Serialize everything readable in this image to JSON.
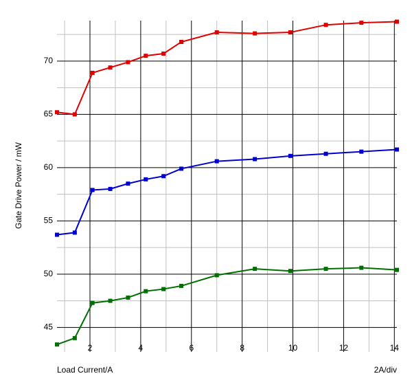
{
  "chart_data": {
    "type": "line",
    "y_label": "Gate Drive Power / mW",
    "x_label": "Load Current/A",
    "x_scale_note": "2A/div",
    "x": [
      0.7,
      1.4,
      2.1,
      2.8,
      3.5,
      4.2,
      4.9,
      5.6,
      7.0,
      8.5,
      9.9,
      11.3,
      12.7,
      14.1
    ],
    "series": [
      {
        "color": "#e00000",
        "values": [
          65.2,
          65.0,
          68.9,
          69.4,
          69.9,
          70.5,
          70.7,
          71.8,
          72.7,
          72.6,
          72.7,
          73.4,
          73.6,
          73.7
        ]
      },
      {
        "color": "#0000d0",
        "values": [
          53.7,
          53.9,
          57.9,
          58.0,
          58.5,
          58.9,
          59.2,
          59.9,
          60.6,
          60.8,
          61.1,
          61.3,
          61.5,
          61.7
        ]
      },
      {
        "color": "#007000",
        "values": [
          43.4,
          44.0,
          47.3,
          47.5,
          47.8,
          48.4,
          48.6,
          48.9,
          49.9,
          50.5,
          50.3,
          50.5,
          50.6,
          50.4
        ]
      }
    ],
    "xlim": [
      0.7,
      14.1
    ],
    "ylim": [
      42.7,
      73.8
    ],
    "xticks": [
      2,
      4,
      6,
      8,
      10,
      12,
      14
    ],
    "yticks": [
      45,
      50,
      55,
      60,
      65,
      70
    ],
    "grid": true
  }
}
